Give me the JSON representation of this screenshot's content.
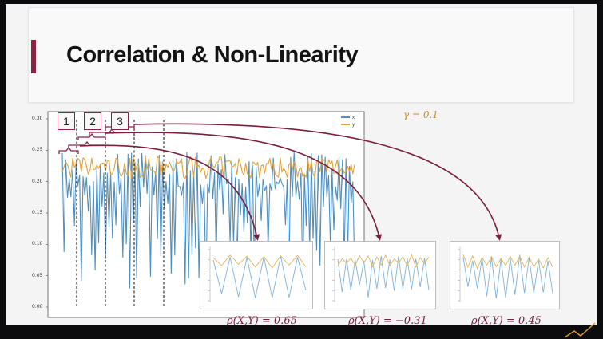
{
  "slide": {
    "title": "Correlation & Non-Linearity"
  },
  "gamma_label": "γ = 0.1",
  "windows": [
    "1",
    "2",
    "3"
  ],
  "correlations": [
    {
      "label": "ρ(X,Y) = 0.65",
      "value": 0.65
    },
    {
      "label": "ρ(X,Y) = −0.31",
      "value": -0.31
    },
    {
      "label": "ρ(X,Y) = 0.45",
      "value": 0.45
    }
  ],
  "colors": {
    "accent": "#8a2442",
    "series_x": "#4f8fbf",
    "series_y": "#e0a23a",
    "arrow": "#7a1f3d"
  },
  "chart_data": {
    "type": "line",
    "series": [
      {
        "name": "x",
        "color": "#4f8fbf"
      },
      {
        "name": "y",
        "color": "#e0a23a"
      }
    ],
    "ylim": [
      0.0,
      0.3
    ],
    "yticks": [
      "0.30",
      "0.25",
      "0.20",
      "0.15",
      "0.10",
      "0.05",
      "0.00"
    ],
    "grid": false,
    "legend": "top-right"
  }
}
